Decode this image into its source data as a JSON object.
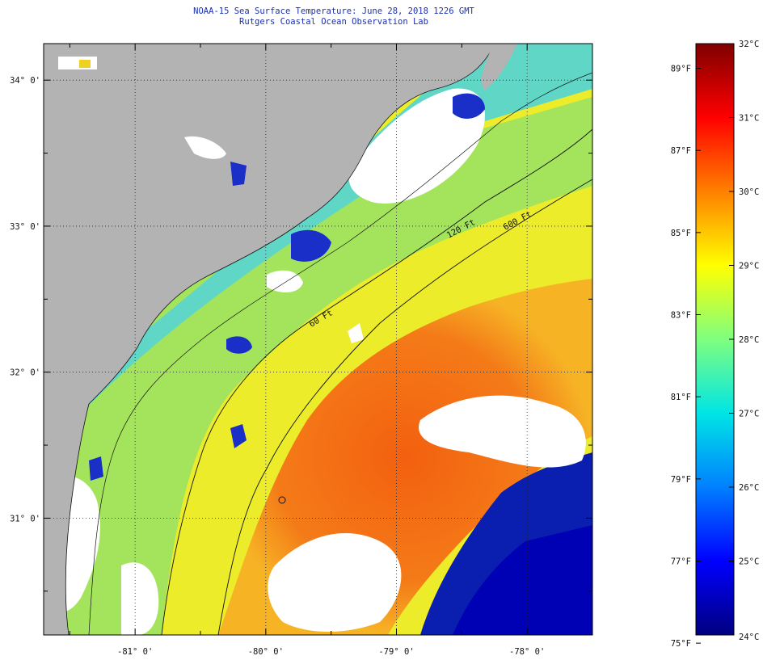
{
  "title_line1": "NOAA-15 Sea Surface Temperature:  June 28, 2018 1226 GMT",
  "title_line2": "Rutgers Coastal Ocean Observation Lab",
  "map": {
    "lon_range": [
      -81.7,
      -77.5
    ],
    "lat_range": [
      30.2,
      34.25
    ],
    "lat_labels": [
      "34° 0'",
      "33° 0'",
      "32° 0'",
      "31° 0'"
    ],
    "lat_values": [
      34,
      33,
      32,
      31
    ],
    "lon_labels": [
      "-81° 0'",
      "-80° 0'",
      "-79° 0'",
      "-78° 0'"
    ],
    "lon_values": [
      -81,
      -80,
      -79,
      -78
    ],
    "isobath_labels": [
      "120 Ft",
      "600 Ft",
      "60 Ft"
    ],
    "colors": {
      "land": "#b3b3b3",
      "cloud": "#ffffff",
      "warm_core": "#f06a12",
      "offshore_yellow": "#f2e61c",
      "shelf_green": "#9ee35a",
      "cold_blue": "#0a1fb0"
    }
  },
  "colorbar": {
    "min_c": 24,
    "max_c": 32,
    "f_labels": [
      "89°F",
      "87°F",
      "85°F",
      "83°F",
      "81°F",
      "79°F",
      "77°F",
      "75°F"
    ],
    "f_values": [
      89,
      87,
      85,
      83,
      81,
      79,
      77,
      75
    ],
    "c_labels": [
      "32°C",
      "31°C",
      "30°C",
      "29°C",
      "28°C",
      "27°C",
      "26°C",
      "25°C",
      "24°C"
    ],
    "c_values": [
      32,
      31,
      30,
      29,
      28,
      27,
      26,
      25,
      24
    ]
  }
}
